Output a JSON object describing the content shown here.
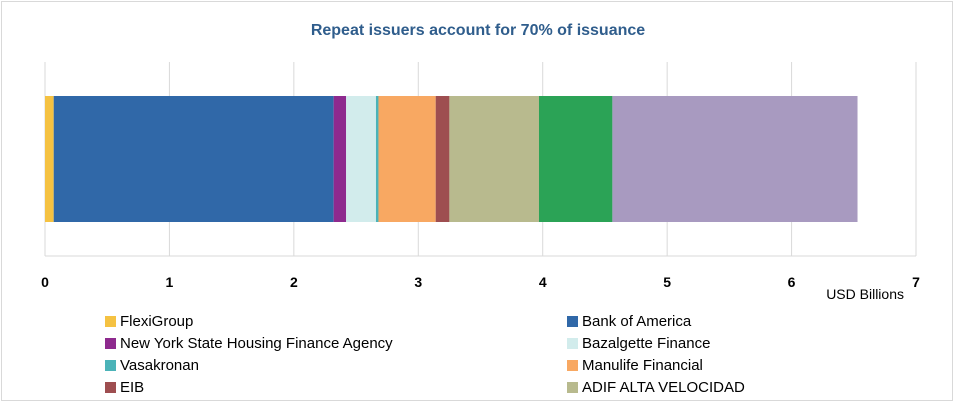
{
  "chart_data": {
    "type": "bar",
    "orientation": "horizontal-stacked",
    "title": "Repeat issuers account for 70% of issuance",
    "xlabel": "USD Billions",
    "ylabel": "",
    "xlim": [
      0,
      7
    ],
    "xticks": [
      "0",
      "1",
      "2",
      "3",
      "4",
      "5",
      "6",
      "7"
    ],
    "grid": true,
    "legend_position": "bottom",
    "series": [
      {
        "name": "FlexiGroup",
        "value": 0.07,
        "color": "#f5c242"
      },
      {
        "name": "Bank of America",
        "value": 2.25,
        "color": "#3068a8"
      },
      {
        "name": "New York State Housing Finance Agency",
        "value": 0.1,
        "color": "#8e2a8e"
      },
      {
        "name": "Bazalgette Finance",
        "value": 0.24,
        "color": "#d2ecec"
      },
      {
        "name": "Vasakronan",
        "value": 0.02,
        "color": "#4bb3b8"
      },
      {
        "name": "Manulife Financial",
        "value": 0.46,
        "color": "#f8a862"
      },
      {
        "name": "EIB",
        "value": 0.11,
        "color": "#9e4e50"
      },
      {
        "name": "ADIF ALTA VELOCIDAD",
        "value": 0.72,
        "color": "#b8ba8e"
      },
      {
        "name": "",
        "value": 0.59,
        "color": "#2ba356"
      },
      {
        "name": "",
        "value": 1.97,
        "color": "#a89ac0"
      }
    ]
  }
}
